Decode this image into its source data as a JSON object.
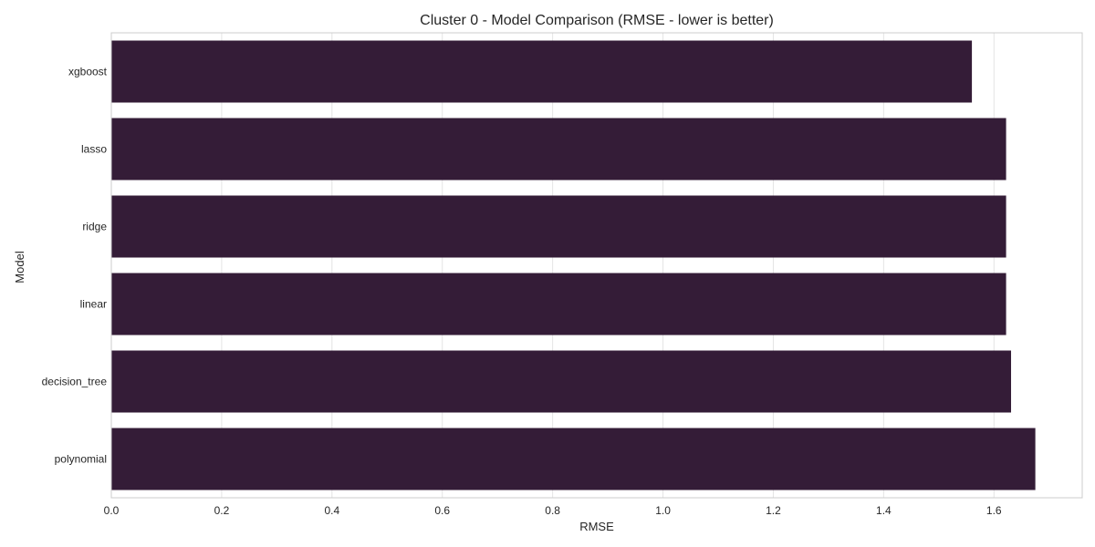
{
  "chart_data": {
    "type": "bar",
    "orientation": "horizontal",
    "title": "Cluster 0 - Model Comparison (RMSE - lower is better)",
    "xlabel": "RMSE",
    "ylabel": "Model",
    "categories": [
      "xgboost",
      "lasso",
      "ridge",
      "linear",
      "decision_tree",
      "polynomial"
    ],
    "values": [
      1.56,
      1.622,
      1.622,
      1.622,
      1.631,
      1.675
    ],
    "xlim": [
      0,
      1.76
    ],
    "xticks": [
      0.0,
      0.2,
      0.4,
      0.6,
      0.8,
      1.0,
      1.2,
      1.4,
      1.6
    ],
    "grid": true,
    "bar_color": "#341c37"
  }
}
